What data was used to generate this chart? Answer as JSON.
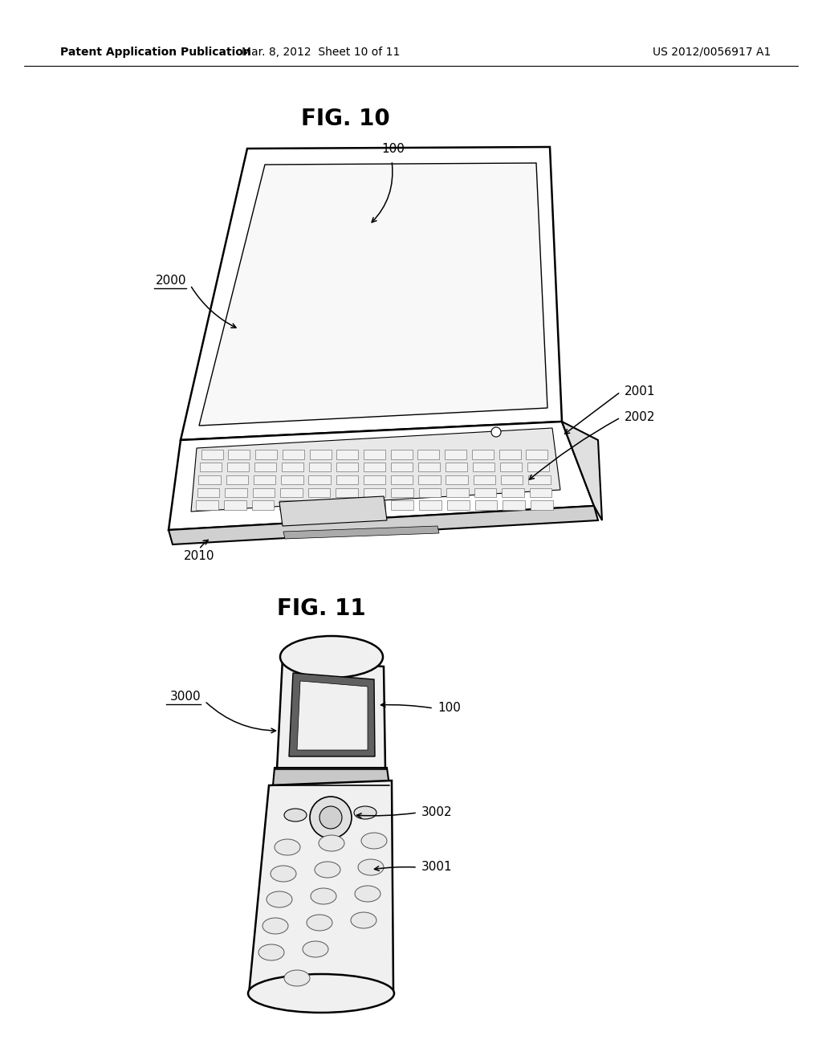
{
  "bg_color": "#ffffff",
  "header_left": "Patent Application Publication",
  "header_mid": "Mar. 8, 2012  Sheet 10 of 11",
  "header_right": "US 2012/0056917 A1",
  "fig10_title": "FIG. 10",
  "fig11_title": "FIG. 11",
  "label_100_fig10": "100",
  "label_2000": "2000",
  "label_2001": "2001",
  "label_2002": "2002",
  "label_2010": "2010",
  "label_100_fig11": "100",
  "label_3000": "3000",
  "label_3001": "3001",
  "label_3002": "3002",
  "line_color": "#000000",
  "text_color": "#000000",
  "lw_main": 1.8,
  "lw_thin": 1.0
}
